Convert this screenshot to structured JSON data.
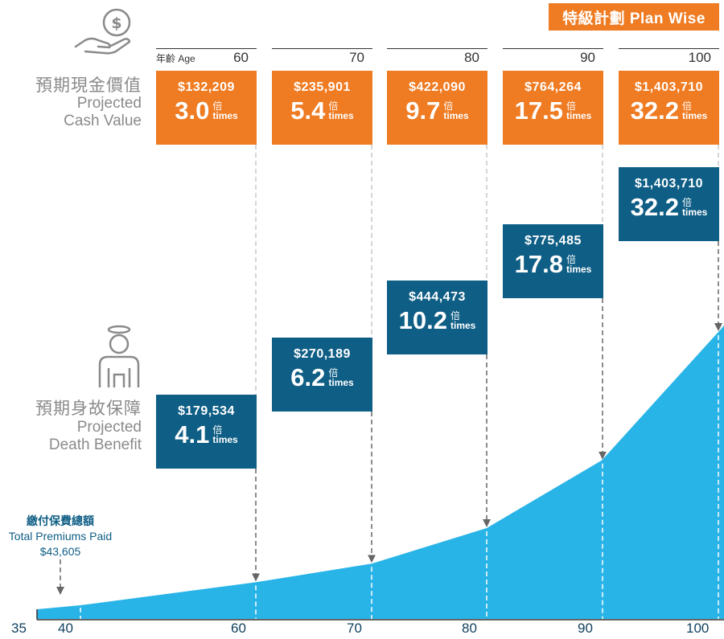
{
  "plan": {
    "title": "特級計劃 Plan Wise"
  },
  "cash_value_label": {
    "zh": "預期現金價值",
    "en_line1": "Projected",
    "en_line2": "Cash Value"
  },
  "death_benefit_label": {
    "zh": "預期身故保障",
    "en_line1": "Projected",
    "en_line2": "Death Benefit"
  },
  "age_caption": "年齡 Age",
  "premiums": {
    "zh": "繳付保費總額",
    "en": "Total Premiums Paid",
    "amount": "$43,605"
  },
  "multiplier_unit": {
    "zh": "倍",
    "en": "times"
  },
  "colors": {
    "orange": "#ef7b22",
    "blue": "#0f5e85",
    "area": "#29b4e8"
  },
  "icons": {
    "cash": "money-hand-icon",
    "death": "angel-person-icon"
  },
  "chart_data": {
    "type": "area",
    "x_ticks": [
      "35",
      "40",
      "60",
      "70",
      "80",
      "90",
      "100"
    ],
    "x": [
      35,
      40,
      60,
      70,
      80,
      90,
      100
    ],
    "series": [
      {
        "name": "Projected Death Benefit curve",
        "values": [
          43605,
          60000,
          179534,
          270189,
          444473,
          775485,
          1403710
        ]
      }
    ],
    "ages": [
      "60",
      "70",
      "80",
      "90",
      "100"
    ],
    "cash_value": [
      {
        "age": "60",
        "amount": "$132,209",
        "multiple": "3.0"
      },
      {
        "age": "70",
        "amount": "$235,901",
        "multiple": "5.4"
      },
      {
        "age": "80",
        "amount": "$422,090",
        "multiple": "9.7"
      },
      {
        "age": "90",
        "amount": "$764,264",
        "multiple": "17.5"
      },
      {
        "age": "100",
        "amount": "$1,403,710",
        "multiple": "32.2"
      }
    ],
    "death_benefit": [
      {
        "age": "60",
        "amount": "$179,534",
        "multiple": "4.1"
      },
      {
        "age": "70",
        "amount": "$270,189",
        "multiple": "6.2"
      },
      {
        "age": "80",
        "amount": "$444,473",
        "multiple": "10.2"
      },
      {
        "age": "90",
        "amount": "$775,485",
        "multiple": "17.8"
      },
      {
        "age": "100",
        "amount": "$1,403,710",
        "multiple": "32.2"
      }
    ]
  }
}
